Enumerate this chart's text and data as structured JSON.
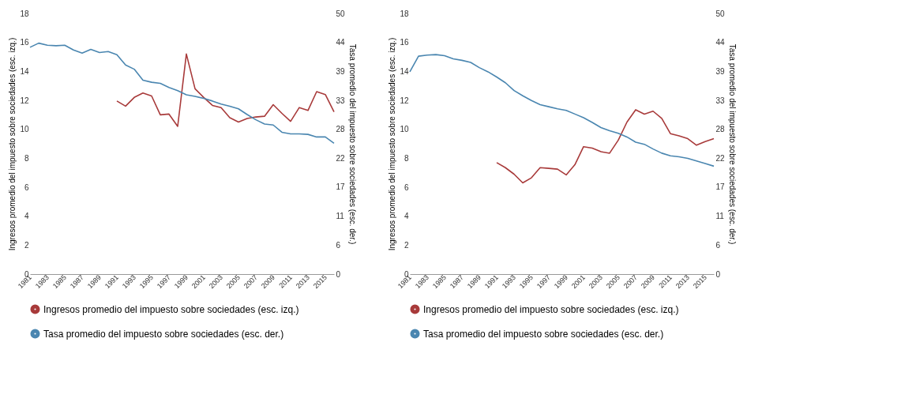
{
  "chart_data": [
    {
      "type": "line",
      "ylabel": "Ingresos promedio del impuesto sobre sociedades (esc. izq.)",
      "y2label": "Tasa promedio del impuesto sobre sociedades (esc. der.)",
      "x": [
        1981,
        1982,
        1983,
        1984,
        1985,
        1986,
        1987,
        1988,
        1989,
        1990,
        1991,
        1992,
        1993,
        1994,
        1995,
        1996,
        1997,
        1998,
        1999,
        2000,
        2001,
        2002,
        2003,
        2004,
        2005,
        2006,
        2007,
        2008,
        2009,
        2010,
        2011,
        2012,
        2013,
        2014,
        2015,
        2016
      ],
      "xlim": [
        1981,
        2016
      ],
      "xticks": [
        1981,
        1983,
        1985,
        1987,
        1989,
        1991,
        1993,
        1995,
        1997,
        1999,
        2001,
        2003,
        2005,
        2007,
        2009,
        2011,
        2013,
        2015
      ],
      "ylim": [
        0,
        18
      ],
      "yticks": [
        0,
        2,
        4,
        6,
        8,
        10,
        12,
        14,
        16,
        18
      ],
      "y2lim": [
        0,
        50
      ],
      "y2ticks": [
        0,
        {
          "value": 5.56,
          "label": "6"
        },
        {
          "value": 11.11,
          "label": "11"
        },
        {
          "value": 16.67,
          "label": "17"
        },
        {
          "value": 22.22,
          "label": "22"
        },
        {
          "value": 27.78,
          "label": "28"
        },
        {
          "value": 33.33,
          "label": "33"
        },
        {
          "value": 38.89,
          "label": "39"
        },
        {
          "value": 44.44,
          "label": "44"
        },
        50
      ],
      "grid": false,
      "legend": "bottom",
      "marker": "none",
      "line_style": "solid",
      "series": [
        {
          "name": "Ingresos promedio del impuesto sobre sociedades (esc. izq.)",
          "color": "#a83a3a",
          "values": [
            null,
            null,
            null,
            null,
            null,
            null,
            null,
            null,
            null,
            null,
            11.95,
            11.6,
            12.2,
            12.5,
            12.3,
            11.0,
            11.05,
            10.2,
            15.2,
            12.8,
            12.2,
            11.65,
            11.5,
            10.8,
            10.5,
            10.75,
            10.85,
            10.9,
            11.7,
            11.1,
            10.55,
            11.5,
            11.3,
            12.6,
            12.4,
            11.2
          ]
        },
        {
          "name": "Tasa promedio del impuesto sobre sociedades (esc. der.)",
          "color": "#4a86b0",
          "axis": "y2",
          "values": [
            43.5,
            44.3,
            43.9,
            43.8,
            43.9,
            43.0,
            42.4,
            43.1,
            42.5,
            42.7,
            42.1,
            40.1,
            39.3,
            37.2,
            36.8,
            36.6,
            35.8,
            35.2,
            34.4,
            34.1,
            33.7,
            33.2,
            32.6,
            32.2,
            31.7,
            30.6,
            29.6,
            28.8,
            28.6,
            27.2,
            26.9,
            26.9,
            26.8,
            26.3,
            26.3,
            25.1
          ]
        }
      ]
    },
    {
      "type": "line",
      "ylabel": "Ingresos promedio del impuesto sobre sociedades (esc. izq.)",
      "y2label": "Tasa promedio del impuesto sobre sociedades (esc. der.)",
      "x": [
        1981,
        1982,
        1983,
        1984,
        1985,
        1986,
        1987,
        1988,
        1989,
        1990,
        1991,
        1992,
        1993,
        1994,
        1995,
        1996,
        1997,
        1998,
        1999,
        2000,
        2001,
        2002,
        2003,
        2004,
        2005,
        2006,
        2007,
        2008,
        2009,
        2010,
        2011,
        2012,
        2013,
        2014,
        2015,
        2016
      ],
      "xlim": [
        1981,
        2016
      ],
      "xticks": [
        1981,
        1983,
        1985,
        1987,
        1989,
        1991,
        1993,
        1995,
        1997,
        1999,
        2001,
        2003,
        2005,
        2007,
        2009,
        2011,
        2013,
        2015
      ],
      "ylim": [
        0,
        18
      ],
      "yticks": [
        0,
        2,
        4,
        6,
        8,
        10,
        12,
        14,
        16,
        18
      ],
      "y2lim": [
        0,
        50
      ],
      "y2ticks": [
        0,
        {
          "value": 5.56,
          "label": "6"
        },
        {
          "value": 11.11,
          "label": "11"
        },
        {
          "value": 16.67,
          "label": "17"
        },
        {
          "value": 22.22,
          "label": "22"
        },
        {
          "value": 27.78,
          "label": "28"
        },
        {
          "value": 33.33,
          "label": "33"
        },
        {
          "value": 38.89,
          "label": "39"
        },
        {
          "value": 44.44,
          "label": "44"
        },
        50
      ],
      "grid": false,
      "legend": "bottom",
      "marker": "none",
      "line_style": "solid",
      "series": [
        {
          "name": "Ingresos promedio del impuesto sobre sociedades (esc. izq.)",
          "color": "#a83a3a",
          "values": [
            null,
            null,
            null,
            null,
            null,
            null,
            null,
            null,
            null,
            null,
            7.7,
            7.35,
            6.9,
            6.3,
            6.65,
            7.35,
            7.3,
            7.25,
            6.85,
            7.55,
            8.8,
            8.7,
            8.45,
            8.35,
            9.25,
            10.5,
            11.35,
            11.05,
            11.25,
            10.75,
            9.7,
            9.55,
            9.35,
            8.9,
            9.15,
            9.35
          ]
        },
        {
          "name": "Tasa promedio del impuesto sobre sociedades (esc. der.)",
          "color": "#4a86b0",
          "axis": "y2",
          "values": [
            38.8,
            41.8,
            42.0,
            42.1,
            41.9,
            41.3,
            41.0,
            40.6,
            39.6,
            38.8,
            37.8,
            36.7,
            35.2,
            34.2,
            33.3,
            32.5,
            32.1,
            31.7,
            31.4,
            30.7,
            30.0,
            29.1,
            28.1,
            27.5,
            27.0,
            26.3,
            25.3,
            24.9,
            24.0,
            23.2,
            22.7,
            22.5,
            22.2,
            21.7,
            21.2,
            20.7
          ]
        }
      ]
    }
  ]
}
